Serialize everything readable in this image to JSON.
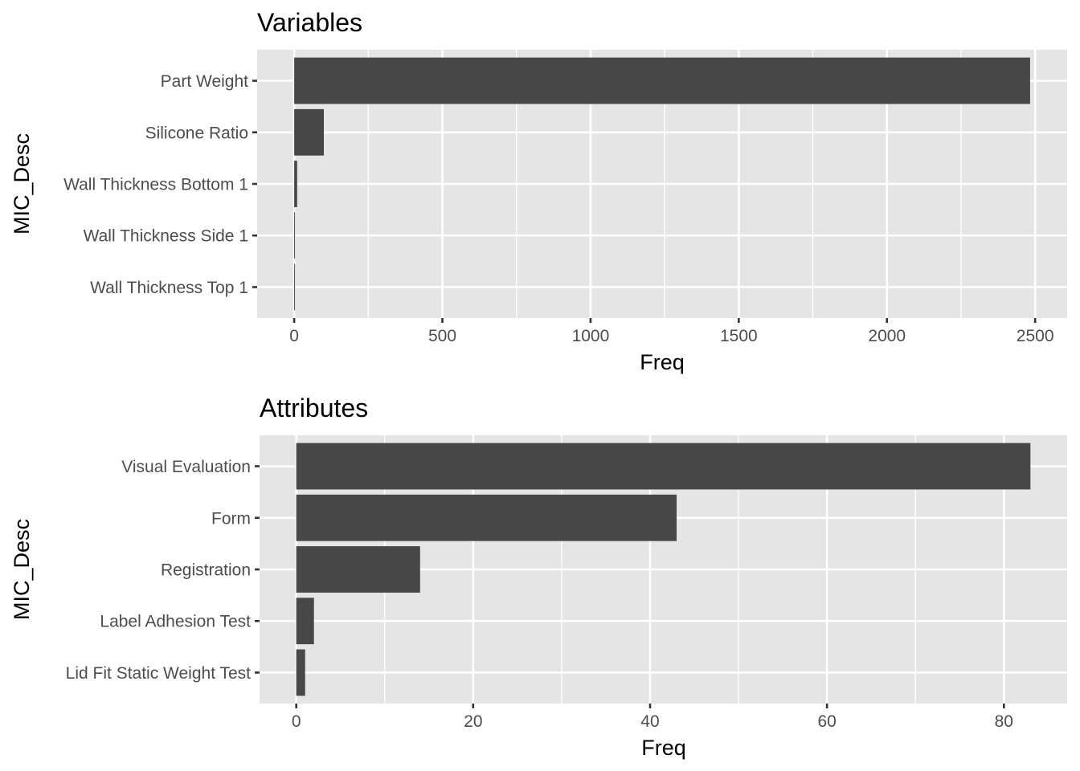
{
  "chart_data": [
    {
      "type": "bar",
      "orientation": "horizontal",
      "title": "Variables",
      "xlabel": "Freq",
      "ylabel": "MIC_Desc",
      "categories": [
        "Part Weight",
        "Silicone Ratio",
        "Wall Thickness Bottom 1",
        "Wall Thickness Side 1",
        "Wall Thickness Top 1"
      ],
      "values": [
        2483,
        100,
        10,
        2,
        1
      ],
      "xlim": [
        -125,
        2608
      ],
      "xticks": [
        0,
        500,
        1000,
        1500,
        2000,
        2500
      ],
      "xtick_labels": [
        "0",
        "500",
        "1000",
        "1500",
        "2000",
        "2500"
      ],
      "grid": true,
      "bar_color": "#474747",
      "panel_color": "#e5e5e5"
    },
    {
      "type": "bar",
      "orientation": "horizontal",
      "title": "Attributes",
      "xlabel": "Freq",
      "ylabel": "MIC_Desc",
      "categories": [
        "Visual Evaluation",
        "Form",
        "Registration",
        "Label Adhesion Test",
        "Lid Fit Static Weight Test"
      ],
      "values": [
        83,
        43,
        14,
        2,
        1
      ],
      "xlim": [
        -4.15,
        87.15
      ],
      "xticks": [
        0,
        20,
        40,
        60,
        80
      ],
      "xtick_labels": [
        "0",
        "20",
        "40",
        "60",
        "80"
      ],
      "grid": true,
      "bar_color": "#474747",
      "panel_color": "#e5e5e5"
    }
  ]
}
